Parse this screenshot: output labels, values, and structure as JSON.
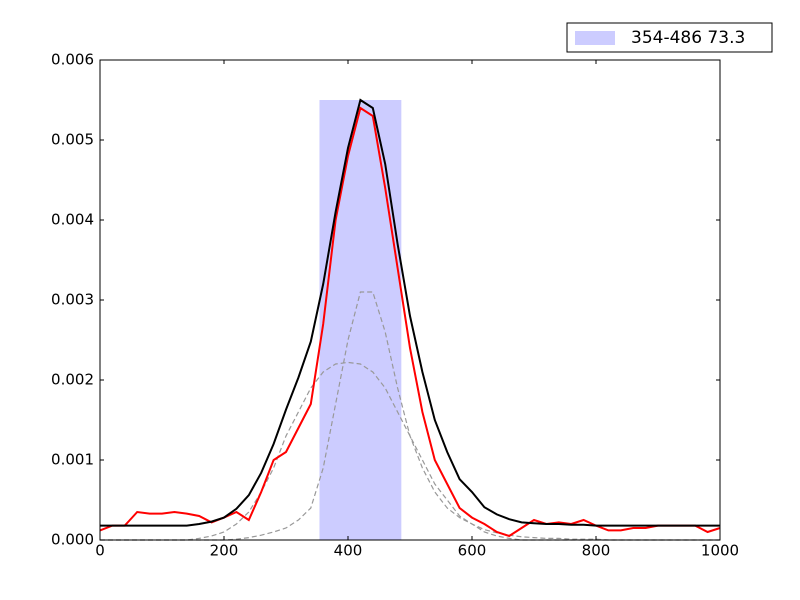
{
  "chart_data": {
    "type": "line",
    "x": [
      0,
      20,
      40,
      60,
      80,
      100,
      120,
      140,
      160,
      180,
      200,
      220,
      240,
      260,
      280,
      300,
      320,
      340,
      360,
      380,
      400,
      420,
      440,
      460,
      480,
      500,
      520,
      540,
      560,
      580,
      600,
      620,
      640,
      660,
      680,
      700,
      720,
      740,
      760,
      780,
      800,
      820,
      840,
      860,
      880,
      900,
      920,
      940,
      960,
      980,
      1000
    ],
    "series": [
      {
        "color": "#999999",
        "dash": true,
        "values": [
          0,
          0,
          0,
          0,
          0,
          0,
          0,
          0,
          0,
          0,
          0,
          1e-05,
          3e-05,
          6e-05,
          0.0001,
          0.00015,
          0.00025,
          0.0004,
          0.0009,
          0.0017,
          0.0025,
          0.0031,
          0.0031,
          0.0026,
          0.0019,
          0.0013,
          0.0009,
          0.0006,
          0.0004,
          0.00028,
          0.0002,
          0.00013,
          9e-05,
          6e-05,
          4e-05,
          3e-05,
          2e-05,
          2e-05,
          1e-05,
          1e-05,
          1e-05,
          0,
          0,
          0,
          0,
          0,
          0,
          0,
          0,
          0,
          0
        ]
      },
      {
        "color": "#999999",
        "dash": true,
        "values": [
          0,
          0,
          0,
          0,
          0,
          0,
          0,
          0,
          2e-05,
          5e-05,
          0.0001,
          0.0002,
          0.00035,
          0.0006,
          0.0009,
          0.0013,
          0.0016,
          0.0019,
          0.0021,
          0.0022,
          0.00222,
          0.0022,
          0.0021,
          0.0019,
          0.0016,
          0.0013,
          0.001,
          0.0007,
          0.0005,
          0.0003,
          0.0002,
          0.0001,
          5e-05,
          2e-05,
          0,
          0,
          0,
          0,
          0,
          0,
          0,
          0,
          0,
          0,
          0,
          0,
          0,
          0,
          0,
          0,
          0
        ]
      },
      {
        "color": "#ff0000",
        "dash": false,
        "values": [
          0.00012,
          0.00018,
          0.00018,
          0.00035,
          0.00033,
          0.00033,
          0.00035,
          0.00033,
          0.0003,
          0.00022,
          0.00028,
          0.00035,
          0.00025,
          0.0006,
          0.001,
          0.0011,
          0.0014,
          0.0017,
          0.0027,
          0.004,
          0.0048,
          0.0054,
          0.0053,
          0.0044,
          0.0034,
          0.0024,
          0.0016,
          0.001,
          0.0007,
          0.0004,
          0.00028,
          0.0002,
          0.0001,
          5e-05,
          0.00015,
          0.00025,
          0.0002,
          0.00022,
          0.0002,
          0.00025,
          0.00018,
          0.00012,
          0.00012,
          0.00015,
          0.00015,
          0.00018,
          0.00018,
          0.00018,
          0.00018,
          0.0001,
          0.00015
        ]
      },
      {
        "color": "#000000",
        "dash": false,
        "values": [
          0.00018,
          0.00018,
          0.00018,
          0.00018,
          0.00018,
          0.00018,
          0.00018,
          0.00018,
          0.0002,
          0.00023,
          0.00028,
          0.00039,
          0.00056,
          0.00084,
          0.0012,
          0.00163,
          0.00203,
          0.00248,
          0.0032,
          0.0041,
          0.0049,
          0.0055,
          0.0054,
          0.0047,
          0.0037,
          0.0028,
          0.0021,
          0.0015,
          0.0011,
          0.00076,
          0.0006,
          0.00041,
          0.00032,
          0.00026,
          0.00022,
          0.00021,
          0.0002,
          0.0002,
          0.00019,
          0.00019,
          0.00018,
          0.00018,
          0.00018,
          0.00018,
          0.00018,
          0.00018,
          0.00018,
          0.00018,
          0.00018,
          0.00018,
          0.00018
        ]
      }
    ],
    "span": {
      "label": "354-486 73.3",
      "xmin": 354,
      "xmax": 486,
      "ymax": 0.0055,
      "color": "#ccccff"
    },
    "xlim": [
      0,
      1000
    ],
    "xticks": [
      0,
      200,
      400,
      600,
      800,
      1000
    ],
    "ylim": [
      0,
      0.006
    ],
    "yticks": [
      {
        "value": 0,
        "label": "0.000"
      },
      0.001,
      0.002,
      0.003,
      0.004,
      0.005,
      0.006
    ],
    "grid": false,
    "legend": "upper right"
  }
}
